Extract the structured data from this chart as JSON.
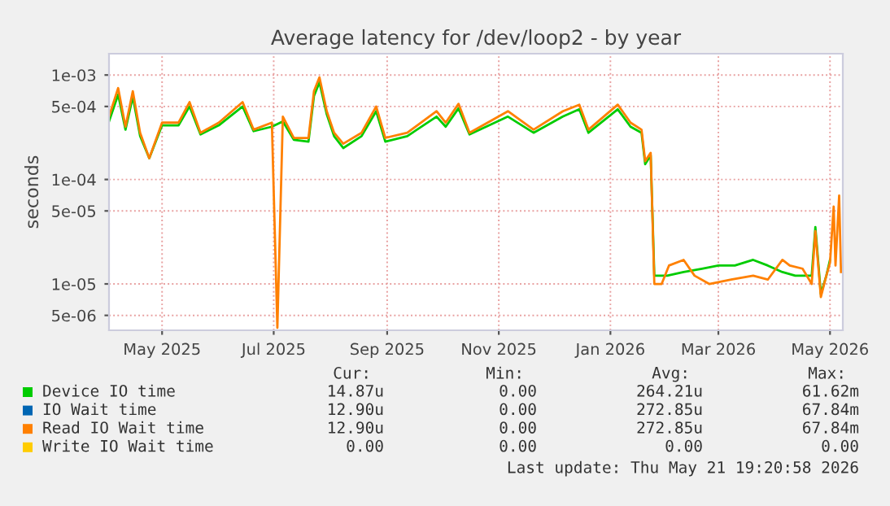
{
  "chart_data": {
    "type": "line",
    "title": "Average latency for /dev/loop2 - by year",
    "ylabel": "seconds",
    "log": "y",
    "ylim": [
      3.6e-06,
      0.0016
    ],
    "yticks": [
      {
        "value": 0.001,
        "label": "1e-03"
      },
      {
        "value": 0.0005,
        "label": "5e-04"
      },
      {
        "value": 0.0001,
        "label": "1e-04"
      },
      {
        "value": 5e-05,
        "label": "5e-05"
      },
      {
        "value": 1e-05,
        "label": "1e-05"
      },
      {
        "value": 5e-06,
        "label": "5e-06"
      }
    ],
    "xlim": [
      "2025-04-02",
      "2026-05-08"
    ],
    "xticks": [
      {
        "value": "2025-05-01",
        "label": "May 2025"
      },
      {
        "value": "2025-07-01",
        "label": "Jul 2025"
      },
      {
        "value": "2025-09-01",
        "label": "Sep 2025"
      },
      {
        "value": "2025-11-01",
        "label": "Nov 2025"
      },
      {
        "value": "2026-01-01",
        "label": "Jan 2026"
      },
      {
        "value": "2026-03-01",
        "label": "Mar 2026"
      },
      {
        "value": "2026-05-01",
        "label": "May 2026"
      }
    ],
    "grid": true,
    "legend": "bottom",
    "marker": "none",
    "line_style": "solid",
    "series": [
      {
        "name": "Device IO time",
        "color": "#00cc00",
        "x": [
          "2025-04-02",
          "2025-04-07",
          "2025-04-11",
          "2025-04-15",
          "2025-04-19",
          "2025-04-24",
          "2025-05-01",
          "2025-05-10",
          "2025-05-16",
          "2025-05-22",
          "2025-06-01",
          "2025-06-14",
          "2025-06-20",
          "2025-06-30",
          "2025-07-06",
          "2025-07-12",
          "2025-07-20",
          "2025-07-23",
          "2025-07-26",
          "2025-07-30",
          "2025-08-03",
          "2025-08-08",
          "2025-08-18",
          "2025-08-26",
          "2025-08-31",
          "2025-09-12",
          "2025-09-28",
          "2025-10-03",
          "2025-10-10",
          "2025-10-16",
          "2025-11-06",
          "2025-11-20",
          "2025-12-06",
          "2025-12-15",
          "2025-12-20",
          "2026-01-05",
          "2026-01-12",
          "2026-01-18",
          "2026-01-20",
          "2026-01-23",
          "2026-01-25",
          "2026-02-01",
          "2026-02-10",
          "2026-02-20",
          "2026-03-01",
          "2026-03-10",
          "2026-03-20",
          "2026-03-28",
          "2026-04-05",
          "2026-04-12",
          "2026-04-21",
          "2026-04-23",
          "2026-04-26",
          "2026-04-29",
          "2026-05-01"
        ],
        "values": [
          0.00036,
          0.00065,
          0.0003,
          0.00062,
          0.00026,
          0.00016,
          0.00033,
          0.00033,
          0.0005,
          0.00027,
          0.00033,
          0.0005,
          0.00029,
          0.00032,
          0.00036,
          0.00024,
          0.00023,
          0.00063,
          0.00085,
          0.00042,
          0.00026,
          0.0002,
          0.00026,
          0.00045,
          0.00023,
          0.00026,
          0.0004,
          0.00032,
          0.00048,
          0.00027,
          0.0004,
          0.00028,
          0.0004,
          0.00047,
          0.00028,
          0.00047,
          0.00032,
          0.00028,
          0.00014,
          0.00017,
          1.2e-05,
          1.2e-05,
          1.3e-05,
          1.4e-05,
          1.5e-05,
          1.5e-05,
          1.7e-05,
          1.5e-05,
          1.3e-05,
          1.2e-05,
          1.2e-05,
          3.5e-05,
          8e-06,
          1.2e-05,
          1.7e-05
        ]
      },
      {
        "name": "IO Wait time",
        "color": "#0066b3"
      },
      {
        "name": "Read IO Wait time",
        "color": "#ff8000",
        "x": [
          "2025-04-02",
          "2025-04-07",
          "2025-04-11",
          "2025-04-15",
          "2025-04-19",
          "2025-04-24",
          "2025-05-01",
          "2025-05-10",
          "2025-05-16",
          "2025-05-22",
          "2025-06-01",
          "2025-06-14",
          "2025-06-20",
          "2025-06-30",
          "2025-07-03",
          "2025-07-06",
          "2025-07-12",
          "2025-07-20",
          "2025-07-23",
          "2025-07-26",
          "2025-07-30",
          "2025-08-03",
          "2025-08-08",
          "2025-08-18",
          "2025-08-26",
          "2025-08-31",
          "2025-09-12",
          "2025-09-28",
          "2025-10-03",
          "2025-10-10",
          "2025-10-16",
          "2025-11-06",
          "2025-11-20",
          "2025-12-06",
          "2025-12-15",
          "2025-12-20",
          "2026-01-05",
          "2026-01-12",
          "2026-01-18",
          "2026-01-20",
          "2026-01-23",
          "2026-01-25",
          "2026-01-29",
          "2026-02-02",
          "2026-02-10",
          "2026-02-16",
          "2026-02-24",
          "2026-03-08",
          "2026-03-20",
          "2026-03-28",
          "2026-04-05",
          "2026-04-09",
          "2026-04-16",
          "2026-04-21",
          "2026-04-23",
          "2026-04-26",
          "2026-04-29",
          "2026-05-01",
          "2026-05-03",
          "2026-05-04",
          "2026-05-06",
          "2026-05-07"
        ],
        "values": [
          0.0004,
          0.00075,
          0.00032,
          0.0007,
          0.00028,
          0.00016,
          0.00035,
          0.00035,
          0.00055,
          0.00028,
          0.00035,
          0.00055,
          0.0003,
          0.00035,
          3.8e-06,
          0.0004,
          0.00025,
          0.00025,
          0.0007,
          0.00095,
          0.00045,
          0.00028,
          0.00022,
          0.00028,
          0.0005,
          0.00025,
          0.00028,
          0.00045,
          0.00035,
          0.00053,
          0.00028,
          0.00045,
          0.0003,
          0.00045,
          0.00052,
          0.0003,
          0.00052,
          0.00035,
          0.0003,
          0.00015,
          0.00018,
          1e-05,
          1e-05,
          1.5e-05,
          1.7e-05,
          1.2e-05,
          1e-05,
          1.1e-05,
          1.2e-05,
          1.1e-05,
          1.7e-05,
          1.5e-05,
          1.4e-05,
          1e-05,
          3.2e-05,
          7.5e-06,
          1.2e-05,
          1.6e-05,
          5.5e-05,
          1.5e-05,
          7e-05,
          1.3e-05
        ]
      },
      {
        "name": "Write IO Wait time",
        "color": "#ffcc00"
      }
    ],
    "annotations": [
      "Cur:",
      "Min:",
      "Avg:",
      "Max:",
      "14.87u",
      "0.00",
      "264.21u",
      "61.62m",
      "12.90u",
      "0.00",
      "272.85u",
      "67.84m",
      "12.90u",
      "0.00",
      "272.85u",
      "67.84m",
      "0.00",
      "0.00",
      "0.00",
      "0.00",
      "Last update: Thu May 21 19:20:58 2026"
    ]
  }
}
